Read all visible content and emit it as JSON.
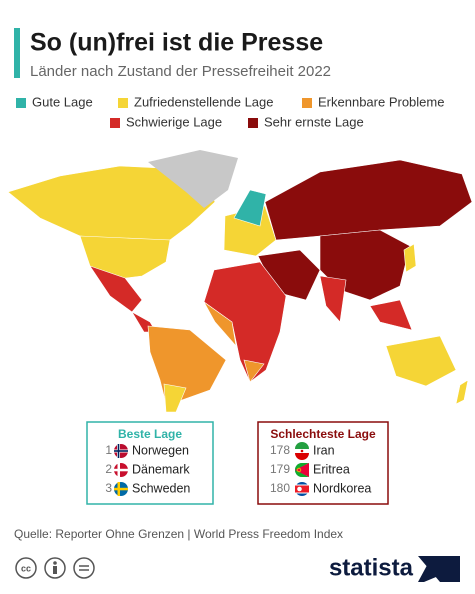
{
  "header": {
    "title": "So (un)frei ist die Presse",
    "subtitle": "Länder nach Zustand der Pressefreiheit 2022"
  },
  "legend": [
    {
      "label": "Gute Lage",
      "color": "#30b3a8"
    },
    {
      "label": "Zufriedenstellende Lage",
      "color": "#f5d536"
    },
    {
      "label": "Erkennbare Probleme",
      "color": "#ef962c"
    },
    {
      "label": "Schwierige Lage",
      "color": "#d42a27"
    },
    {
      "label": "Sehr ernste Lage",
      "color": "#8a0c0c"
    }
  ],
  "best": {
    "title": "Beste Lage",
    "items": [
      {
        "rank": 1,
        "country": "Norwegen"
      },
      {
        "rank": 2,
        "country": "Dänemark"
      },
      {
        "rank": 3,
        "country": "Schweden"
      }
    ]
  },
  "worst": {
    "title": "Schlechteste Lage",
    "items": [
      {
        "rank": 178,
        "country": "Iran"
      },
      {
        "rank": 179,
        "country": "Eritrea"
      },
      {
        "rank": 180,
        "country": "Nordkorea"
      }
    ]
  },
  "footer": {
    "source": "Quelle: Reporter Ohne Grenzen | World Press Freedom Index",
    "brand": "statista"
  }
}
